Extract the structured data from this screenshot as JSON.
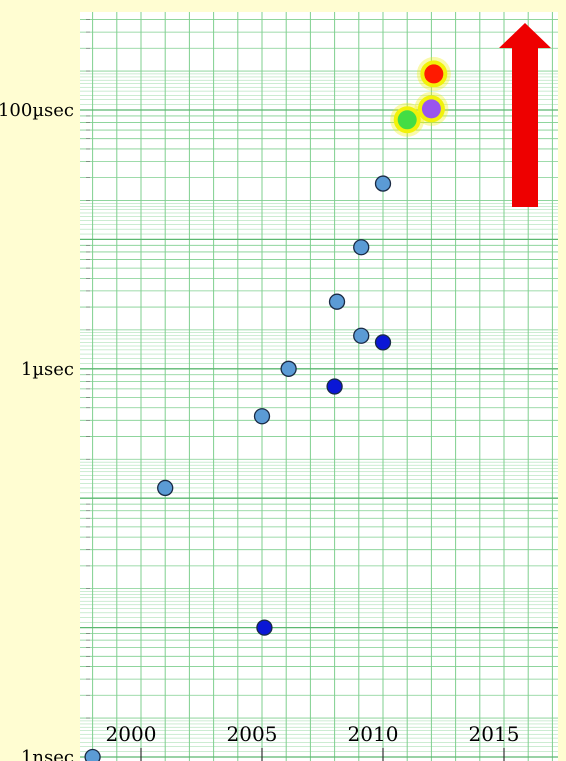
{
  "chart_data": {
    "type": "scatter",
    "title": "",
    "xlabel": "",
    "ylabel": "",
    "y_scale": "log",
    "xlim": [
      1998,
      2017
    ],
    "ylim_seconds": [
      1e-09,
      0.001
    ],
    "y_tick_labels": [
      {
        "label": "1nsec",
        "value": 1e-09
      },
      {
        "label": "1µsec",
        "value": 1e-06
      },
      {
        "label": "100µsec",
        "value": 0.0001
      }
    ],
    "x_tick_labels": [
      {
        "label": "2000",
        "value": 2000
      },
      {
        "label": "2005",
        "value": 2005
      },
      {
        "label": "2010",
        "value": 2010
      },
      {
        "label": "2015",
        "value": 2015
      }
    ],
    "grid": true,
    "series": [
      {
        "marker_color": "#5b9bd5",
        "points": [
          {
            "x": 1998.0,
            "y": 1e-09
          },
          {
            "x": 2001.0,
            "y": 1.2e-07
          },
          {
            "x": 2005.0,
            "y": 4.3e-07
          },
          {
            "x": 2006.1,
            "y": 1e-06
          },
          {
            "x": 2008.1,
            "y": 3.3e-06
          },
          {
            "x": 2009.1,
            "y": 8.7e-06
          },
          {
            "x": 2010.0,
            "y": 2.7e-05
          },
          {
            "x": 2009.1,
            "y": 1.8e-06
          }
        ]
      },
      {
        "marker_color": "#0a17d6",
        "points": [
          {
            "x": 2005.1,
            "y": 1e-08
          },
          {
            "x": 2008.0,
            "y": 7.3e-07
          },
          {
            "x": 2010.0,
            "y": 1.6e-06
          }
        ]
      },
      {
        "marker_color": "#44dd44",
        "highlight": "#f2f20a",
        "points": [
          {
            "x": 2011.0,
            "y": 8.4e-05
          }
        ]
      },
      {
        "marker_color": "#9955ee",
        "highlight": "#f2f20a",
        "points": [
          {
            "x": 2012.0,
            "y": 0.000102
          }
        ]
      },
      {
        "marker_color": "#ff1a00",
        "highlight": "#f2f20a",
        "points": [
          {
            "x": 2012.1,
            "y": 0.00019
          }
        ]
      }
    ],
    "annotations": [
      {
        "type": "arrow",
        "direction": "up",
        "color": "#ee0000"
      }
    ]
  }
}
